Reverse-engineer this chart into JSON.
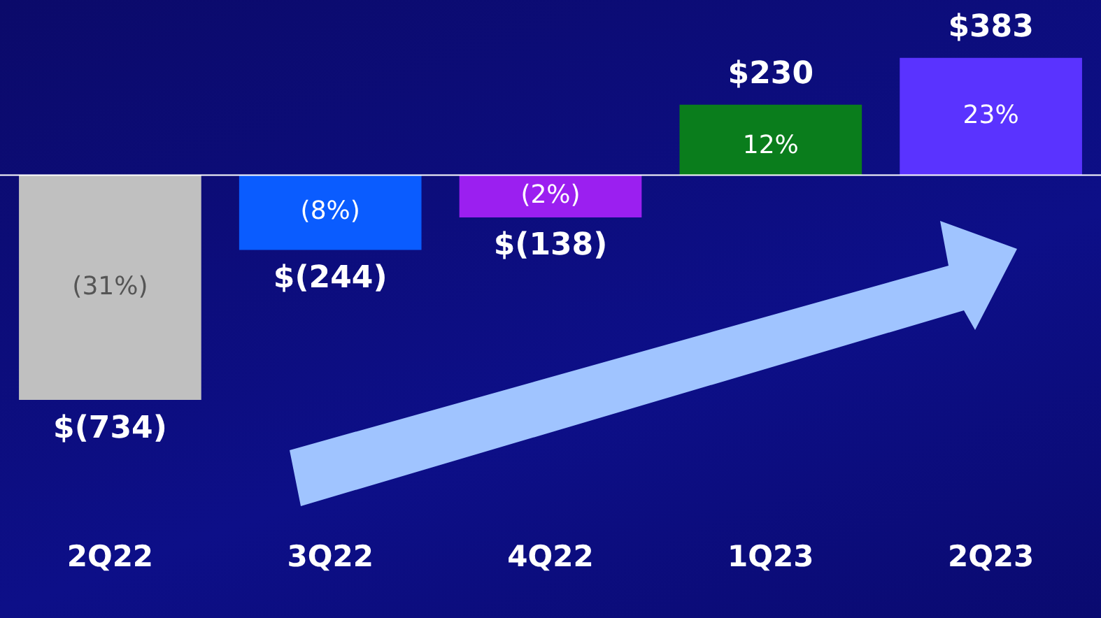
{
  "chart_data": {
    "type": "bar",
    "categories": [
      "2Q22",
      "3Q22",
      "4Q22",
      "1Q23",
      "2Q23"
    ],
    "values": [
      -734,
      -244,
      -138,
      230,
      383
    ],
    "colors": [
      "#c0c0c0",
      "#0a5cff",
      "#9b1ff0",
      "#0a7d1c",
      "#5a33ff"
    ],
    "value_labels": [
      "$(734)",
      "$(244)",
      "$(138)",
      "$230",
      "$383"
    ],
    "annotations": [
      "(31%)",
      "(8%)",
      "(2%)",
      "12%",
      "23%"
    ],
    "ref_lines": [
      {
        "axis": "y",
        "value": 0,
        "color": "#ffffff"
      }
    ],
    "grid": false,
    "legend": false
  }
}
